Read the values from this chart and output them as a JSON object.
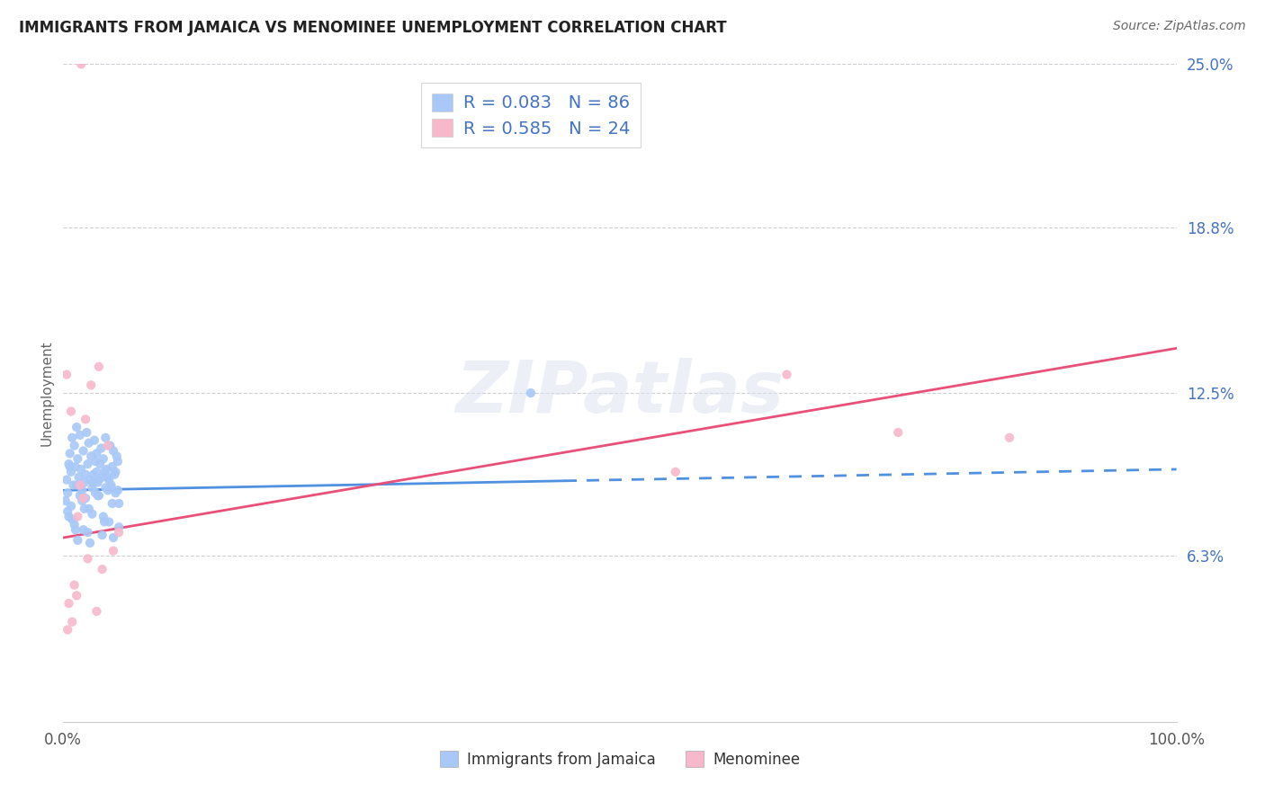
{
  "title": "IMMIGRANTS FROM JAMAICA VS MENOMINEE UNEMPLOYMENT CORRELATION CHART",
  "source": "Source: ZipAtlas.com",
  "ylabel": "Unemployment",
  "xlim": [
    0.0,
    100.0
  ],
  "ylim": [
    0.0,
    25.0
  ],
  "yticks": [
    6.3,
    12.5,
    18.8,
    25.0
  ],
  "ytick_labels": [
    "6.3%",
    "12.5%",
    "18.8%",
    "25.0%"
  ],
  "xticks": [
    0.0,
    100.0
  ],
  "xtick_labels": [
    "0.0%",
    "100.0%"
  ],
  "grid_color": "#c8c8d0",
  "background_color": "#ffffff",
  "jamaica_color": "#a8c8f8",
  "menominee_color": "#f8b8cc",
  "jamaica_R": 0.083,
  "jamaica_N": 86,
  "menominee_R": 0.585,
  "menominee_N": 24,
  "jamaica_line_color": "#5090e0",
  "menominee_line_color": "#e8507a",
  "watermark_text": "ZIPatlas",
  "jamaica_line_x0": 0.0,
  "jamaica_line_y0": 8.8,
  "jamaica_line_x1": 100.0,
  "jamaica_line_y1": 9.6,
  "jamaica_solid_end": 45.0,
  "menominee_line_x0": 0.0,
  "menominee_line_y0": 7.0,
  "menominee_line_x1": 100.0,
  "menominee_line_y1": 14.2,
  "jamaica_scatter_x": [
    0.3,
    0.4,
    0.5,
    0.6,
    0.7,
    0.8,
    0.9,
    1.0,
    1.1,
    1.2,
    1.3,
    1.4,
    1.5,
    1.6,
    1.7,
    1.8,
    1.9,
    2.0,
    2.1,
    2.2,
    2.3,
    2.4,
    2.5,
    2.6,
    2.7,
    2.8,
    2.9,
    3.0,
    3.1,
    3.2,
    3.3,
    3.4,
    3.5,
    3.6,
    3.7,
    3.8,
    3.9,
    4.0,
    4.1,
    4.2,
    4.3,
    4.4,
    4.5,
    4.6,
    4.7,
    4.8,
    4.9,
    5.0,
    0.2,
    0.5,
    0.7,
    1.0,
    1.2,
    1.5,
    1.8,
    2.0,
    2.3,
    2.6,
    2.9,
    3.2,
    3.5,
    3.8,
    4.1,
    4.4,
    4.7,
    5.0,
    0.4,
    0.8,
    1.3,
    1.7,
    2.2,
    2.7,
    3.1,
    3.6,
    4.0,
    4.5,
    4.9,
    0.6,
    1.1,
    1.9,
    2.4,
    3.0,
    3.7,
    4.3,
    42.0
  ],
  "jamaica_scatter_y": [
    9.2,
    8.7,
    9.8,
    10.2,
    9.5,
    10.8,
    9.0,
    10.5,
    9.7,
    11.2,
    10.0,
    9.3,
    10.9,
    9.6,
    8.8,
    10.3,
    9.1,
    8.5,
    11.0,
    9.8,
    10.6,
    9.2,
    10.1,
    8.9,
    9.4,
    10.7,
    9.9,
    10.2,
    9.1,
    8.6,
    9.8,
    10.4,
    9.3,
    10.0,
    9.5,
    10.8,
    9.6,
    8.8,
    9.2,
    10.5,
    9.0,
    9.7,
    10.3,
    9.4,
    8.7,
    10.1,
    9.9,
    8.3,
    8.4,
    7.8,
    8.2,
    7.5,
    9.0,
    8.6,
    7.3,
    9.4,
    8.1,
    7.9,
    8.7,
    9.2,
    7.1,
    8.9,
    7.6,
    8.3,
    9.5,
    7.4,
    8.0,
    7.7,
    6.9,
    8.4,
    7.2,
    9.1,
    8.6,
    7.8,
    9.3,
    7.0,
    8.8,
    9.7,
    7.3,
    8.1,
    6.8,
    9.5,
    7.6,
    8.9,
    12.5
  ],
  "menominee_scatter_x": [
    0.3,
    0.5,
    0.8,
    1.0,
    1.3,
    1.5,
    1.8,
    2.0,
    2.5,
    3.0,
    3.5,
    4.0,
    4.5,
    5.0,
    0.4,
    0.7,
    1.2,
    2.2,
    3.2,
    55.0,
    65.0,
    75.0,
    85.0,
    1.6
  ],
  "menominee_scatter_y": [
    13.2,
    4.5,
    3.8,
    5.2,
    7.8,
    9.0,
    8.5,
    11.5,
    12.8,
    4.2,
    5.8,
    10.5,
    6.5,
    7.2,
    3.5,
    11.8,
    4.8,
    6.2,
    13.5,
    9.5,
    13.2,
    11.0,
    10.8,
    25.0
  ]
}
